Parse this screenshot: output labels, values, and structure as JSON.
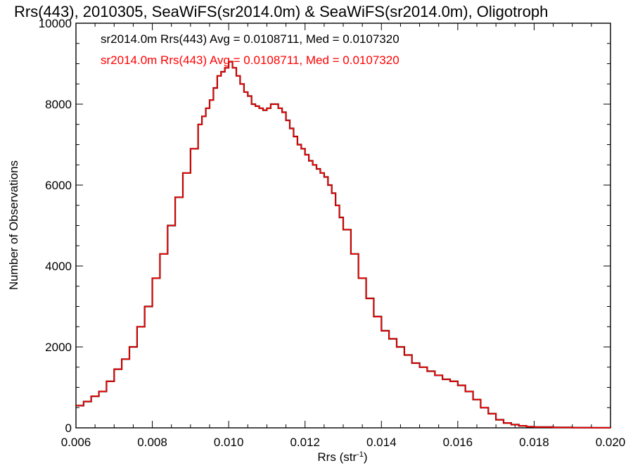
{
  "chart_data": {
    "type": "line",
    "title": "Rrs(443), 2010305, SeaWiFS(sr2014.0m) & SeaWiFS(sr2014.0m), Oligotroph",
    "xlabel": "Rrs (str",
    "xlabel_sup": "-1",
    "xlabel_close": ")",
    "ylabel": "Number of Observations",
    "xlim": [
      0.006,
      0.02
    ],
    "ylim": [
      0,
      10000
    ],
    "xticks": [
      "0.006",
      "0.008",
      "0.010",
      "0.012",
      "0.014",
      "0.016",
      "0.018",
      "0.020"
    ],
    "yticks": [
      "0",
      "2000",
      "4000",
      "6000",
      "8000",
      "10000"
    ],
    "grid": false,
    "legend_position": "top-left",
    "series": [
      {
        "name": "sr2014.0m Rrs(443) Avg = 0.0108711, Med = 0.0107320",
        "color": "#000000",
        "x": [
          0.006,
          0.0062,
          0.0064,
          0.0066,
          0.0068,
          0.007,
          0.0072,
          0.0074,
          0.0076,
          0.0078,
          0.008,
          0.0082,
          0.0084,
          0.0086,
          0.0088,
          0.009,
          0.0092,
          0.0093,
          0.0094,
          0.0095,
          0.0096,
          0.0097,
          0.0098,
          0.0099,
          0.01,
          0.0101,
          0.0102,
          0.0103,
          0.0104,
          0.0105,
          0.0106,
          0.0107,
          0.0108,
          0.0109,
          0.011,
          0.0111,
          0.0112,
          0.0113,
          0.0114,
          0.0115,
          0.0116,
          0.0117,
          0.0118,
          0.0119,
          0.012,
          0.0121,
          0.0122,
          0.0123,
          0.0124,
          0.0125,
          0.0126,
          0.0127,
          0.0128,
          0.0129,
          0.013,
          0.0132,
          0.0134,
          0.0136,
          0.0138,
          0.014,
          0.0142,
          0.0144,
          0.0146,
          0.0148,
          0.015,
          0.0152,
          0.0154,
          0.0156,
          0.0158,
          0.016,
          0.0162,
          0.0164,
          0.0166,
          0.0168,
          0.017,
          0.0172,
          0.0174,
          0.0176,
          0.0178,
          0.018,
          0.0185,
          0.019,
          0.0195,
          0.02
        ],
        "y": [
          550,
          650,
          780,
          900,
          1150,
          1450,
          1700,
          2000,
          2500,
          3000,
          3700,
          4300,
          5000,
          5700,
          6300,
          6900,
          7500,
          7700,
          7900,
          8100,
          8400,
          8700,
          8800,
          8900,
          9050,
          8900,
          8700,
          8500,
          8300,
          8200,
          8000,
          7950,
          7900,
          7850,
          7900,
          8000,
          8000,
          7900,
          7800,
          7600,
          7400,
          7200,
          7000,
          6900,
          6750,
          6600,
          6500,
          6400,
          6300,
          6200,
          6000,
          5800,
          5500,
          5200,
          4900,
          4300,
          3700,
          3200,
          2750,
          2400,
          2200,
          2000,
          1800,
          1600,
          1500,
          1400,
          1300,
          1200,
          1150,
          1050,
          900,
          700,
          500,
          350,
          200,
          120,
          80,
          50,
          30,
          20,
          10,
          5,
          3,
          2
        ]
      },
      {
        "name": "sr2014.0m Rrs(443) Avg = 0.0108711, Med = 0.0107320",
        "color": "#ff0000",
        "x": [
          0.006,
          0.0062,
          0.0064,
          0.0066,
          0.0068,
          0.007,
          0.0072,
          0.0074,
          0.0076,
          0.0078,
          0.008,
          0.0082,
          0.0084,
          0.0086,
          0.0088,
          0.009,
          0.0092,
          0.0093,
          0.0094,
          0.0095,
          0.0096,
          0.0097,
          0.0098,
          0.0099,
          0.01,
          0.0101,
          0.0102,
          0.0103,
          0.0104,
          0.0105,
          0.0106,
          0.0107,
          0.0108,
          0.0109,
          0.011,
          0.0111,
          0.0112,
          0.0113,
          0.0114,
          0.0115,
          0.0116,
          0.0117,
          0.0118,
          0.0119,
          0.012,
          0.0121,
          0.0122,
          0.0123,
          0.0124,
          0.0125,
          0.0126,
          0.0127,
          0.0128,
          0.0129,
          0.013,
          0.0132,
          0.0134,
          0.0136,
          0.0138,
          0.014,
          0.0142,
          0.0144,
          0.0146,
          0.0148,
          0.015,
          0.0152,
          0.0154,
          0.0156,
          0.0158,
          0.016,
          0.0162,
          0.0164,
          0.0166,
          0.0168,
          0.017,
          0.0172,
          0.0174,
          0.0176,
          0.0178,
          0.018,
          0.0185,
          0.019,
          0.0195,
          0.02
        ],
        "y": [
          550,
          650,
          780,
          900,
          1150,
          1450,
          1700,
          2000,
          2500,
          3000,
          3700,
          4300,
          5000,
          5700,
          6300,
          6900,
          7500,
          7700,
          7900,
          8100,
          8400,
          8700,
          8800,
          8900,
          9050,
          8900,
          8700,
          8500,
          8300,
          8200,
          8000,
          7950,
          7900,
          7850,
          7900,
          8000,
          8000,
          7900,
          7800,
          7600,
          7400,
          7200,
          7000,
          6900,
          6750,
          6600,
          6500,
          6400,
          6300,
          6200,
          6000,
          5800,
          5500,
          5200,
          4900,
          4300,
          3700,
          3200,
          2750,
          2400,
          2200,
          2000,
          1800,
          1600,
          1500,
          1400,
          1300,
          1200,
          1150,
          1050,
          900,
          700,
          500,
          350,
          200,
          120,
          80,
          50,
          30,
          20,
          10,
          5,
          3,
          2
        ]
      }
    ]
  }
}
